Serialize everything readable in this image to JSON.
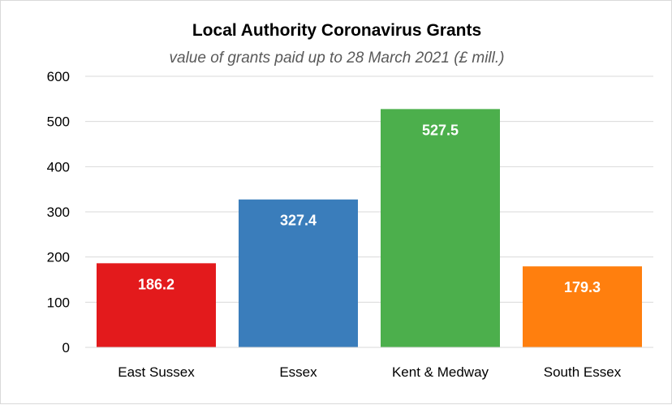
{
  "chart_data": {
    "type": "bar",
    "title": "Local Authority Coronavirus Grants",
    "subtitle": "value of grants paid up to 28 March 2021 (£ mill.)",
    "categories": [
      "East Sussex",
      "Essex",
      "Kent & Medway",
      "South Essex"
    ],
    "values": [
      186.2,
      327.4,
      527.5,
      179.3
    ],
    "value_labels": [
      "186.2",
      "327.4",
      "527.5",
      "179.3"
    ],
    "colors": [
      "#e31a1c",
      "#3a7dbb",
      "#4caf4c",
      "#ff7f0e"
    ],
    "ylim": [
      0,
      600
    ],
    "yticks": [
      0,
      100,
      200,
      300,
      400,
      500,
      600
    ],
    "grid": true,
    "xlabel": "",
    "ylabel": ""
  }
}
